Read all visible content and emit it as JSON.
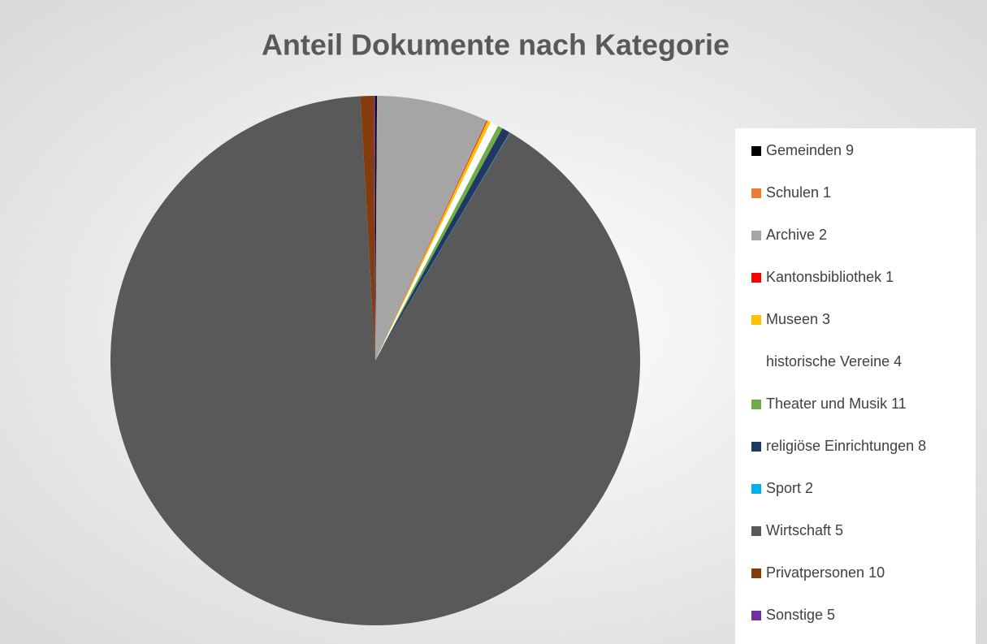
{
  "chart_data": {
    "type": "pie",
    "title": "Anteil Dokumente nach Kategorie",
    "categories": [
      "Gemeinden 9",
      "Schulen 1",
      "Archive 2",
      "Kantonsbibliothek 1",
      "Museen 3",
      "historische Vereine 4",
      "Theater und Musik 11",
      "religiöse Einrichtungen 8",
      "Sport 2",
      "Wirtschaft 5",
      "Privatpersonen 10",
      "Sonstige 5"
    ],
    "values": [
      0.1,
      0.02,
      6.8,
      0.05,
      0.2,
      0.5,
      0.3,
      0.5,
      0.02,
      90.6,
      0.8,
      0.1
    ],
    "colors": [
      "#000000",
      "#ed7d31",
      "#a5a5a5",
      "#ff0000",
      "#ffc000",
      "#ffffff",
      "#70ad47",
      "#203864",
      "#00b0f0",
      "#595959",
      "#843c0c",
      "#7030a0"
    ],
    "legend": "right"
  }
}
